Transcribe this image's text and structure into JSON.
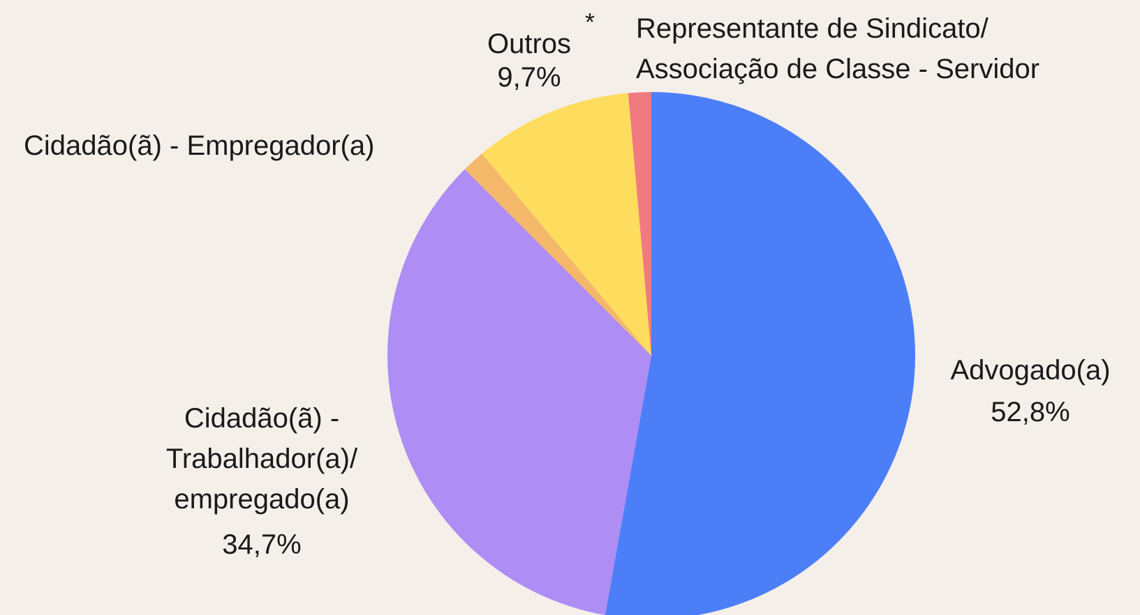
{
  "chart_data": {
    "type": "pie",
    "categories": [
      "Advogado(a)",
      "Cidadão(ã) -\nTrabalhador(a)/\nempregado(a)",
      "Cidadão(ã) - Empregador(a)",
      "Outros",
      "Representante de Sindicato/\nAssociação de Classe - Servidor"
    ],
    "values": [
      52.8,
      34.7,
      1.4,
      9.7,
      1.4
    ],
    "value_labels": [
      "52,8%",
      "34,7%",
      null,
      "9,7%",
      null
    ],
    "colors": [
      "#4c7ff7",
      "#ae8df5",
      "#f3b86a",
      "#fedd5e",
      "#f07a80"
    ],
    "annotations": [
      "*"
    ]
  }
}
